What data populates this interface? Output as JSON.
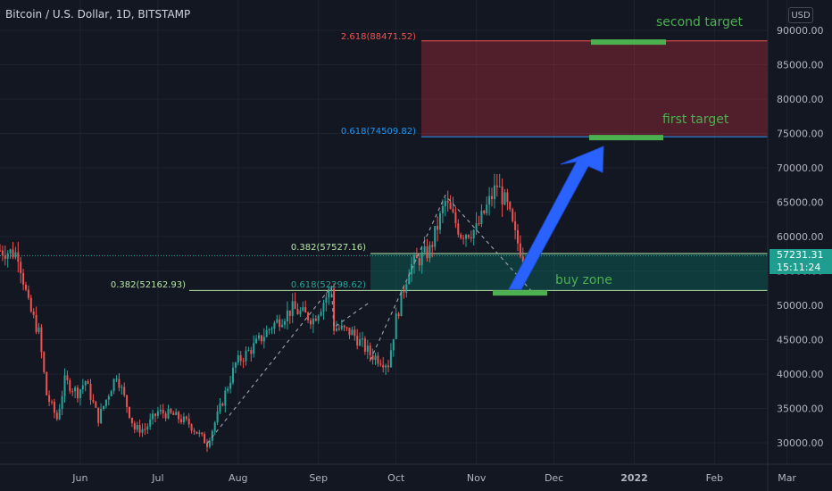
{
  "header": {
    "title": "Bitcoin / U.S. Dollar, 1D, BITSTAMP",
    "currency": "USD"
  },
  "price_tag": {
    "price": "57231.31",
    "countdown": "15:11:24"
  },
  "annotations": {
    "second_target": "second target",
    "first_target": "first target",
    "buy_zone": "buy zone",
    "fib_2618": "2.618(88471.52)",
    "fib_0618_top": "0.618(74509.82)",
    "fib_0382_a": "0.382(57527.16)",
    "fib_0618_b": "0.618(52298.62)",
    "fib_0382_c": "0.382(52162.93)"
  },
  "colors": {
    "background": "#131722",
    "bull": "#26a69a",
    "bear": "#ef5350",
    "target_green": "#4caf50",
    "arrow_blue": "#2962ff",
    "zone_red": "#f23645",
    "zone_teal": "#089981"
  },
  "chart_data": {
    "type": "candlestick",
    "symbol": "Bitcoin / U.S. Dollar",
    "interval": "1D",
    "exchange": "BITSTAMP",
    "x_ticks": [
      "Jun",
      "Jul",
      "Aug",
      "Sep",
      "Oct",
      "Nov",
      "Dec",
      "2022",
      "Feb",
      "Mar"
    ],
    "y_ticks": [
      "90000.00",
      "85000.00",
      "80000.00",
      "75000.00",
      "70000.00",
      "65000.00",
      "60000.00",
      "55000.00",
      "50000.00",
      "45000.00",
      "40000.00",
      "35000.00",
      "30000.00"
    ],
    "ylim": [
      27500,
      92500
    ],
    "close_path": [
      [
        "2021-05-01",
        58000
      ],
      [
        "2021-05-08",
        57500
      ],
      [
        "2021-05-12",
        50000
      ],
      [
        "2021-05-16",
        46000
      ],
      [
        "2021-05-19",
        37000
      ],
      [
        "2021-05-23",
        33500
      ],
      [
        "2021-05-26",
        39000
      ],
      [
        "2021-05-31",
        37300
      ],
      [
        "2021-06-03",
        39000
      ],
      [
        "2021-06-08",
        33500
      ],
      [
        "2021-06-15",
        40000
      ],
      [
        "2021-06-22",
        32000
      ],
      [
        "2021-06-26",
        32000
      ],
      [
        "2021-07-01",
        34500
      ],
      [
        "2021-07-07",
        34000
      ],
      [
        "2021-07-13",
        32800
      ],
      [
        "2021-07-20",
        29900
      ],
      [
        "2021-07-25",
        35000
      ],
      [
        "2021-07-31",
        41500
      ],
      [
        "2021-08-07",
        44000
      ],
      [
        "2021-08-14",
        47000
      ],
      [
        "2021-08-22",
        49500
      ],
      [
        "2021-08-30",
        48000
      ],
      [
        "2021-09-06",
        52500
      ],
      [
        "2021-09-07",
        46800
      ],
      [
        "2021-09-14",
        46000
      ],
      [
        "2021-09-21",
        42900
      ],
      [
        "2021-09-28",
        41500
      ],
      [
        "2021-10-01",
        48000
      ],
      [
        "2021-10-06",
        55500
      ],
      [
        "2021-10-14",
        58000
      ],
      [
        "2021-10-20",
        65000
      ],
      [
        "2021-10-26",
        60500
      ],
      [
        "2021-11-01",
        61000
      ],
      [
        "2021-11-09",
        67500
      ],
      [
        "2021-11-13",
        64200
      ],
      [
        "2021-11-16",
        60000
      ],
      [
        "2021-11-19",
        57231
      ]
    ],
    "levels": [
      {
        "label": "2.618",
        "value": 88471.52
      },
      {
        "label": "0.618",
        "value": 74509.82
      },
      {
        "label": "0.382",
        "value": 57527.16
      },
      {
        "label": "0.618",
        "value": 52298.62
      },
      {
        "label": "0.382",
        "value": 52162.93
      }
    ],
    "zones": [
      {
        "name": "target zone",
        "from": 74509.82,
        "to": 88471.52
      },
      {
        "name": "buy zone",
        "from": 52162.93,
        "to": 57527.16
      }
    ],
    "targets": [
      {
        "name": "second target",
        "value": 88471.52
      },
      {
        "name": "first target",
        "value": 74509.82
      }
    ]
  }
}
